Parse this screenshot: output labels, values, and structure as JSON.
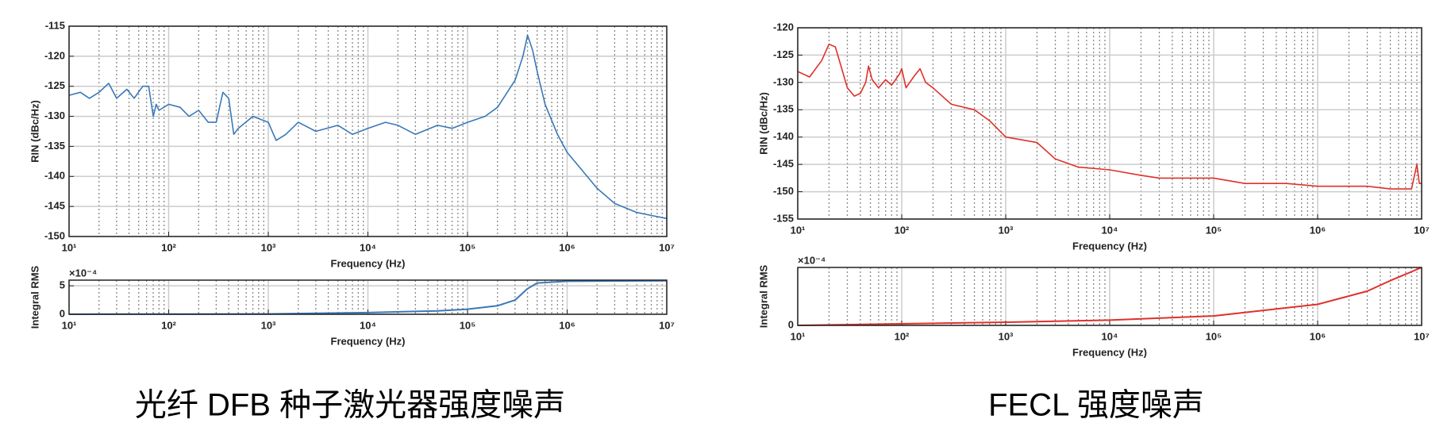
{
  "chart_data": [
    {
      "type": "line",
      "xscale": "log",
      "grid": true,
      "color": "#3a78b8",
      "xlabel": "Frequency (Hz)",
      "ylabel": "RIN (dBc/Hz)",
      "xlim": [
        10,
        10000000
      ],
      "ylim": [
        -150,
        -115
      ],
      "xticks": [
        {
          "value": 10,
          "label": "10¹"
        },
        {
          "value": 100,
          "label": "10²"
        },
        {
          "value": 1000,
          "label": "10³"
        },
        {
          "value": 10000,
          "label": "10⁴"
        },
        {
          "value": 100000,
          "label": "10⁵"
        },
        {
          "value": 1000000,
          "label": "10⁶"
        },
        {
          "value": 10000000,
          "label": "10⁷"
        }
      ],
      "xminorticks": [
        20,
        30,
        40,
        50,
        60,
        70,
        80,
        90,
        200,
        300,
        400,
        500,
        600,
        700,
        800,
        900,
        2000,
        3000,
        4000,
        5000,
        6000,
        7000,
        8000,
        9000,
        20000,
        30000,
        40000,
        50000,
        60000,
        70000,
        80000,
        90000,
        200000,
        300000,
        400000,
        500000,
        600000,
        700000,
        800000,
        900000,
        2000000,
        3000000,
        4000000,
        5000000,
        6000000,
        7000000,
        8000000,
        9000000
      ],
      "yticks": [
        -150,
        -145,
        -140,
        -135,
        -130,
        -125,
        -120,
        -115
      ],
      "x": [
        10,
        13,
        16,
        20,
        25,
        30,
        38,
        45,
        55,
        63,
        70,
        75,
        80,
        100,
        130,
        160,
        200,
        250,
        300,
        350,
        400,
        450,
        500,
        700,
        1000,
        1200,
        1500,
        2000,
        3000,
        5000,
        7000,
        10000,
        15000,
        20000,
        30000,
        50000,
        70000,
        100000,
        150000,
        200000,
        300000,
        360000,
        400000,
        450000,
        500000,
        600000,
        800000,
        1000000,
        1500000,
        2000000,
        3000000,
        5000000,
        7000000,
        10000000
      ],
      "values": [
        -126.5,
        -126,
        -127,
        -126,
        -124.5,
        -127,
        -125.5,
        -127,
        -125,
        -125,
        -130,
        -128,
        -129,
        -128,
        -128.5,
        -130,
        -129,
        -131,
        -131,
        -126,
        -127,
        -133,
        -132,
        -130,
        -131,
        -134,
        -133,
        -131,
        -132.5,
        -131.5,
        -133,
        -132,
        -131,
        -131.5,
        -133,
        -131.5,
        -132,
        -131,
        -130,
        -128.5,
        -124,
        -120,
        -116.5,
        -119,
        -122.5,
        -128,
        -133,
        -136,
        -139.5,
        -142,
        -144.5,
        -146,
        -146.5,
        -147
      ]
    },
    {
      "type": "line",
      "xscale": "log",
      "grid": true,
      "color": "#3a78b8",
      "xlabel": "Frequency (Hz)",
      "ylabel": "Integral RMS",
      "y_multiplier": "×10⁻⁴",
      "xlim": [
        10,
        10000000
      ],
      "ylim": [
        0,
        6
      ],
      "xticks": [
        {
          "value": 10,
          "label": "10¹"
        },
        {
          "value": 100,
          "label": "10²"
        },
        {
          "value": 1000,
          "label": "10³"
        },
        {
          "value": 10000,
          "label": "10⁴"
        },
        {
          "value": 100000,
          "label": "10⁵"
        },
        {
          "value": 1000000,
          "label": "10⁶"
        },
        {
          "value": 10000000,
          "label": "10⁷"
        }
      ],
      "xminorticks": [
        20,
        30,
        40,
        50,
        60,
        70,
        80,
        90,
        200,
        300,
        400,
        500,
        600,
        700,
        800,
        900,
        2000,
        3000,
        4000,
        5000,
        6000,
        7000,
        8000,
        9000,
        20000,
        30000,
        40000,
        50000,
        60000,
        70000,
        80000,
        90000,
        200000,
        300000,
        400000,
        500000,
        600000,
        700000,
        800000,
        900000,
        2000000,
        3000000,
        4000000,
        5000000,
        6000000,
        7000000,
        8000000,
        9000000
      ],
      "yticks": [
        0,
        5
      ],
      "x": [
        10,
        1000,
        10000,
        50000,
        100000,
        200000,
        300000,
        400000,
        500000,
        1000000,
        10000000
      ],
      "values": [
        0,
        0.05,
        0.3,
        0.6,
        0.9,
        1.5,
        2.5,
        4.5,
        5.5,
        5.8,
        5.9
      ]
    },
    {
      "type": "line",
      "xscale": "log",
      "grid": true,
      "color": "#e0302a",
      "xlabel": "Frequency (Hz)",
      "ylabel": "RIN (dBc/Hz)",
      "xlim": [
        10,
        10000000
      ],
      "ylim": [
        -155,
        -120
      ],
      "xticks": [
        {
          "value": 10,
          "label": "10¹"
        },
        {
          "value": 100,
          "label": "10²"
        },
        {
          "value": 1000,
          "label": "10³"
        },
        {
          "value": 10000,
          "label": "10⁴"
        },
        {
          "value": 100000,
          "label": "10⁵"
        },
        {
          "value": 1000000,
          "label": "10⁶"
        },
        {
          "value": 10000000,
          "label": "10⁷"
        }
      ],
      "xminorticks": [
        20,
        30,
        40,
        50,
        60,
        70,
        80,
        90,
        200,
        300,
        400,
        500,
        600,
        700,
        800,
        900,
        2000,
        3000,
        4000,
        5000,
        6000,
        7000,
        8000,
        9000,
        20000,
        30000,
        40000,
        50000,
        60000,
        70000,
        80000,
        90000,
        200000,
        300000,
        400000,
        500000,
        600000,
        700000,
        800000,
        900000,
        2000000,
        3000000,
        4000000,
        5000000,
        6000000,
        7000000,
        8000000,
        9000000
      ],
      "yticks": [
        -155,
        -150,
        -145,
        -140,
        -135,
        -130,
        -125,
        -120
      ],
      "x": [
        10,
        13,
        17,
        20,
        23,
        27,
        30,
        35,
        40,
        45,
        48,
        52,
        60,
        70,
        80,
        95,
        100,
        110,
        130,
        150,
        170,
        200,
        300,
        500,
        700,
        1000,
        2000,
        3000,
        5000,
        10000,
        20000,
        30000,
        50000,
        100000,
        200000,
        500000,
        1000000,
        3000000,
        5000000,
        8000000,
        9000000,
        9500000,
        10000000
      ],
      "values": [
        -128,
        -129,
        -126,
        -123,
        -123.5,
        -128,
        -131,
        -132.5,
        -132,
        -130,
        -127,
        -129.5,
        -131,
        -129.5,
        -130.5,
        -128.5,
        -127.5,
        -131,
        -129,
        -127.5,
        -130,
        -131,
        -134,
        -135,
        -137,
        -140,
        -141,
        -144,
        -145.5,
        -146,
        -147,
        -147.5,
        -147.5,
        -147.5,
        -148.5,
        -148.5,
        -149,
        -149,
        -149.5,
        -149.5,
        -145,
        -148.5,
        -148.5
      ]
    },
    {
      "type": "line",
      "xscale": "log",
      "grid": true,
      "color": "#e0302a",
      "xlabel": "Frequency (Hz)",
      "ylabel": "Integral RMS",
      "y_multiplier": "×10⁻⁴",
      "xlim": [
        10,
        10000000
      ],
      "ylim": [
        0,
        1.1
      ],
      "xticks": [
        {
          "value": 10,
          "label": "10¹"
        },
        {
          "value": 100,
          "label": "10²"
        },
        {
          "value": 1000,
          "label": "10³"
        },
        {
          "value": 10000,
          "label": "10⁴"
        },
        {
          "value": 100000,
          "label": "10⁵"
        },
        {
          "value": 1000000,
          "label": "10⁶"
        },
        {
          "value": 10000000,
          "label": "10⁷"
        }
      ],
      "xminorticks": [
        20,
        30,
        40,
        50,
        60,
        70,
        80,
        90,
        200,
        300,
        400,
        500,
        600,
        700,
        800,
        900,
        2000,
        3000,
        4000,
        5000,
        6000,
        7000,
        8000,
        9000,
        20000,
        30000,
        40000,
        50000,
        60000,
        70000,
        80000,
        90000,
        200000,
        300000,
        400000,
        500000,
        600000,
        700000,
        800000,
        900000,
        2000000,
        3000000,
        4000000,
        5000000,
        6000000,
        7000000,
        8000000,
        9000000
      ],
      "yticks": [
        0
      ],
      "x": [
        10,
        100,
        1000,
        10000,
        100000,
        1000000,
        3000000,
        5000000,
        10000000
      ],
      "values": [
        0,
        0.03,
        0.06,
        0.1,
        0.18,
        0.4,
        0.65,
        0.85,
        1.1
      ]
    }
  ],
  "captions": [
    "光纤 DFB 种子激光器强度噪声",
    "FECL 强度噪声"
  ]
}
